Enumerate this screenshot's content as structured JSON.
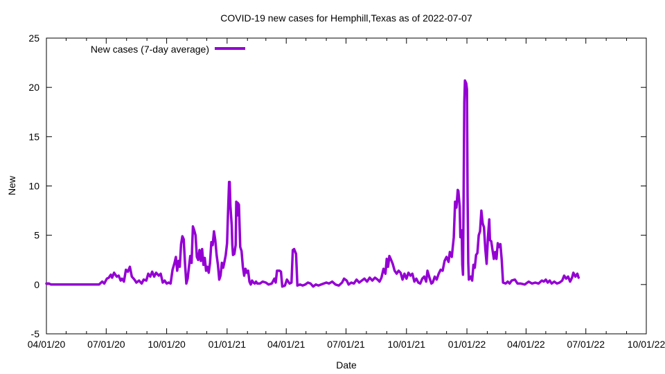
{
  "chart_data": {
    "type": "line",
    "title": "COVID-19 new cases for Hemphill,Texas as of 2022-07-07",
    "xlabel": "Date",
    "ylabel": "New",
    "xlim": [
      "2020-04-01",
      "2022-10-01"
    ],
    "ylim": [
      -5,
      25
    ],
    "grid": false,
    "legend_position": "top-left",
    "x_ticks": [
      "04/01/20",
      "07/01/20",
      "10/01/20",
      "01/01/21",
      "04/01/21",
      "07/01/21",
      "10/01/21",
      "01/01/22",
      "04/01/22",
      "07/01/22",
      "10/01/22"
    ],
    "x_tick_dates": [
      "2020-04-01",
      "2020-07-01",
      "2020-10-01",
      "2021-01-01",
      "2021-04-01",
      "2021-07-01",
      "2021-10-01",
      "2022-01-01",
      "2022-04-01",
      "2022-07-01",
      "2022-10-01"
    ],
    "y_ticks": [
      -5,
      0,
      5,
      10,
      15,
      20,
      25
    ],
    "series": [
      {
        "name": "New cases (7-day average)",
        "color": "#9400d3",
        "points": [
          [
            "2020-04-01",
            0.1
          ],
          [
            "2020-04-05",
            0.1
          ],
          [
            "2020-04-08",
            0
          ],
          [
            "2020-06-20",
            0
          ],
          [
            "2020-06-25",
            0.3
          ],
          [
            "2020-06-28",
            0.1
          ],
          [
            "2020-07-02",
            0.6
          ],
          [
            "2020-07-05",
            0.7
          ],
          [
            "2020-07-08",
            1.0
          ],
          [
            "2020-07-10",
            0.7
          ],
          [
            "2020-07-13",
            1.2
          ],
          [
            "2020-07-17",
            0.8
          ],
          [
            "2020-07-20",
            0.9
          ],
          [
            "2020-07-23",
            0.4
          ],
          [
            "2020-07-25",
            0.6
          ],
          [
            "2020-07-28",
            0.3
          ],
          [
            "2020-07-31",
            1.5
          ],
          [
            "2020-08-03",
            1.3
          ],
          [
            "2020-08-06",
            1.8
          ],
          [
            "2020-08-09",
            0.8
          ],
          [
            "2020-08-13",
            0.5
          ],
          [
            "2020-08-16",
            0.2
          ],
          [
            "2020-08-20",
            0.4
          ],
          [
            "2020-08-24",
            0.1
          ],
          [
            "2020-08-27",
            0.5
          ],
          [
            "2020-08-31",
            0.4
          ],
          [
            "2020-09-03",
            1.1
          ],
          [
            "2020-09-06",
            0.8
          ],
          [
            "2020-09-09",
            1.3
          ],
          [
            "2020-09-12",
            0.8
          ],
          [
            "2020-09-15",
            1.2
          ],
          [
            "2020-09-19",
            0.9
          ],
          [
            "2020-09-22",
            1.1
          ],
          [
            "2020-09-25",
            0.2
          ],
          [
            "2020-09-28",
            0.4
          ],
          [
            "2020-10-01",
            0.1
          ],
          [
            "2020-10-04",
            0.2
          ],
          [
            "2020-10-07",
            0.1
          ],
          [
            "2020-10-10",
            1.5
          ],
          [
            "2020-10-13",
            2.2
          ],
          [
            "2020-10-15",
            2.8
          ],
          [
            "2020-10-17",
            1.4
          ],
          [
            "2020-10-19",
            2.4
          ],
          [
            "2020-10-21",
            1.8
          ],
          [
            "2020-10-23",
            4.1
          ],
          [
            "2020-10-25",
            4.9
          ],
          [
            "2020-10-27",
            4.6
          ],
          [
            "2020-10-29",
            2.1
          ],
          [
            "2020-10-31",
            0.1
          ],
          [
            "2020-11-02",
            0.6
          ],
          [
            "2020-11-04",
            1.8
          ],
          [
            "2020-11-06",
            2.9
          ],
          [
            "2020-11-08",
            2.2
          ],
          [
            "2020-11-10",
            5.9
          ],
          [
            "2020-11-12",
            5.5
          ],
          [
            "2020-11-14",
            5.0
          ],
          [
            "2020-11-16",
            2.8
          ],
          [
            "2020-11-18",
            2.5
          ],
          [
            "2020-11-20",
            3.5
          ],
          [
            "2020-11-22",
            2.4
          ],
          [
            "2020-11-24",
            3.6
          ],
          [
            "2020-11-26",
            2.0
          ],
          [
            "2020-11-28",
            2.7
          ],
          [
            "2020-11-30",
            1.4
          ],
          [
            "2020-12-02",
            1.8
          ],
          [
            "2020-12-04",
            1.2
          ],
          [
            "2020-12-06",
            2.2
          ],
          [
            "2020-12-08",
            4.3
          ],
          [
            "2020-12-10",
            4.0
          ],
          [
            "2020-12-12",
            5.4
          ],
          [
            "2020-12-14",
            4.5
          ],
          [
            "2020-12-16",
            3.0
          ],
          [
            "2020-12-18",
            2.0
          ],
          [
            "2020-12-20",
            0.5
          ],
          [
            "2020-12-22",
            0.9
          ],
          [
            "2020-12-24",
            2.2
          ],
          [
            "2020-12-26",
            1.7
          ],
          [
            "2020-12-28",
            2.3
          ],
          [
            "2020-12-30",
            3.0
          ],
          [
            "2021-01-01",
            4.2
          ],
          [
            "2021-01-02",
            6.5
          ],
          [
            "2021-01-04",
            10.4
          ],
          [
            "2021-01-05",
            10.4
          ],
          [
            "2021-01-06",
            8.0
          ],
          [
            "2021-01-08",
            6.0
          ],
          [
            "2021-01-09",
            4.0
          ],
          [
            "2021-01-10",
            3.0
          ],
          [
            "2021-01-12",
            3.1
          ],
          [
            "2021-01-14",
            4.0
          ],
          [
            "2021-01-15",
            8.4
          ],
          [
            "2021-01-16",
            7.0
          ],
          [
            "2021-01-17",
            8.3
          ],
          [
            "2021-01-19",
            8.1
          ],
          [
            "2021-01-21",
            3.8
          ],
          [
            "2021-01-23",
            3.4
          ],
          [
            "2021-01-25",
            1.8
          ],
          [
            "2021-01-27",
            0.9
          ],
          [
            "2021-01-29",
            1.6
          ],
          [
            "2021-01-31",
            1.2
          ],
          [
            "2021-02-02",
            1.4
          ],
          [
            "2021-02-04",
            0.3
          ],
          [
            "2021-02-06",
            0
          ],
          [
            "2021-02-08",
            0.4
          ],
          [
            "2021-02-10",
            0.2
          ],
          [
            "2021-02-12",
            0.1
          ],
          [
            "2021-02-14",
            0.3
          ],
          [
            "2021-02-16",
            0.1
          ],
          [
            "2021-02-20",
            0.1
          ],
          [
            "2021-02-24",
            0.3
          ],
          [
            "2021-03-01",
            0.2
          ],
          [
            "2021-03-05",
            0
          ],
          [
            "2021-03-10",
            0.1
          ],
          [
            "2021-03-14",
            0.6
          ],
          [
            "2021-03-16",
            0.2
          ],
          [
            "2021-03-18",
            1.4
          ],
          [
            "2021-03-22",
            1.4
          ],
          [
            "2021-03-24",
            1.3
          ],
          [
            "2021-03-26",
            -0.2
          ],
          [
            "2021-03-30",
            -0.1
          ],
          [
            "2021-04-02",
            0.5
          ],
          [
            "2021-04-06",
            0.1
          ],
          [
            "2021-04-09",
            0.2
          ],
          [
            "2021-04-11",
            3.5
          ],
          [
            "2021-04-13",
            3.6
          ],
          [
            "2021-04-16",
            3.1
          ],
          [
            "2021-04-18",
            -0.1
          ],
          [
            "2021-04-22",
            0
          ],
          [
            "2021-04-26",
            -0.1
          ],
          [
            "2021-04-30",
            0
          ],
          [
            "2021-05-04",
            0.2
          ],
          [
            "2021-05-08",
            0.1
          ],
          [
            "2021-05-12",
            -0.2
          ],
          [
            "2021-05-16",
            0
          ],
          [
            "2021-05-20",
            -0.1
          ],
          [
            "2021-05-24",
            0
          ],
          [
            "2021-06-01",
            0.2
          ],
          [
            "2021-06-05",
            0.1
          ],
          [
            "2021-06-10",
            0.3
          ],
          [
            "2021-06-15",
            0
          ],
          [
            "2021-06-20",
            -0.1
          ],
          [
            "2021-06-25",
            0.2
          ],
          [
            "2021-06-28",
            0.6
          ],
          [
            "2021-07-02",
            0.4
          ],
          [
            "2021-07-05",
            0
          ],
          [
            "2021-07-09",
            0.2
          ],
          [
            "2021-07-13",
            0.1
          ],
          [
            "2021-07-17",
            0.5
          ],
          [
            "2021-07-21",
            0.2
          ],
          [
            "2021-07-25",
            0.4
          ],
          [
            "2021-07-29",
            0.6
          ],
          [
            "2021-08-02",
            0.3
          ],
          [
            "2021-08-06",
            0.7
          ],
          [
            "2021-08-10",
            0.4
          ],
          [
            "2021-08-14",
            0.7
          ],
          [
            "2021-08-18",
            0.5
          ],
          [
            "2021-08-21",
            0.3
          ],
          [
            "2021-08-24",
            0.7
          ],
          [
            "2021-08-27",
            1.6
          ],
          [
            "2021-08-30",
            1.1
          ],
          [
            "2021-09-01",
            2.6
          ],
          [
            "2021-09-03",
            1.8
          ],
          [
            "2021-09-05",
            2.9
          ],
          [
            "2021-09-07",
            2.6
          ],
          [
            "2021-09-10",
            2.1
          ],
          [
            "2021-09-13",
            1.4
          ],
          [
            "2021-09-16",
            1.1
          ],
          [
            "2021-09-19",
            1.4
          ],
          [
            "2021-09-22",
            1.2
          ],
          [
            "2021-09-25",
            0.5
          ],
          [
            "2021-09-28",
            1.1
          ],
          [
            "2021-10-01",
            0.6
          ],
          [
            "2021-10-04",
            1.2
          ],
          [
            "2021-10-07",
            0.9
          ],
          [
            "2021-10-10",
            1.1
          ],
          [
            "2021-10-13",
            0.3
          ],
          [
            "2021-10-16",
            0.6
          ],
          [
            "2021-10-19",
            0.2
          ],
          [
            "2021-10-22",
            0.1
          ],
          [
            "2021-10-25",
            0.6
          ],
          [
            "2021-10-28",
            0.8
          ],
          [
            "2021-10-31",
            0.3
          ],
          [
            "2021-11-02",
            1.4
          ],
          [
            "2021-11-05",
            0.7
          ],
          [
            "2021-11-08",
            0.1
          ],
          [
            "2021-11-10",
            0.2
          ],
          [
            "2021-11-13",
            0.8
          ],
          [
            "2021-11-16",
            0.5
          ],
          [
            "2021-11-19",
            1.1
          ],
          [
            "2021-11-22",
            1.5
          ],
          [
            "2021-11-25",
            1.4
          ],
          [
            "2021-11-28",
            2.4
          ],
          [
            "2021-12-01",
            2.8
          ],
          [
            "2021-12-04",
            2.3
          ],
          [
            "2021-12-06",
            3.3
          ],
          [
            "2021-12-09",
            2.8
          ],
          [
            "2021-12-12",
            4.8
          ],
          [
            "2021-12-14",
            8.4
          ],
          [
            "2021-12-16",
            7.8
          ],
          [
            "2021-12-18",
            9.6
          ],
          [
            "2021-12-19",
            9.5
          ],
          [
            "2021-12-21",
            7.9
          ],
          [
            "2021-12-22",
            4.8
          ],
          [
            "2021-12-24",
            5.5
          ],
          [
            "2021-12-25",
            2.0
          ],
          [
            "2021-12-26",
            1.0
          ],
          [
            "2021-12-28",
            18.5
          ],
          [
            "2021-12-29",
            20.7
          ],
          [
            "2021-12-31",
            20.4
          ],
          [
            "2022-01-01",
            19.8
          ],
          [
            "2022-01-02",
            9.0
          ],
          [
            "2022-01-03",
            2.2
          ],
          [
            "2022-01-04",
            0.5
          ],
          [
            "2022-01-07",
            0.8
          ],
          [
            "2022-01-09",
            0.4
          ],
          [
            "2022-01-11",
            2.0
          ],
          [
            "2022-01-13",
            1.7
          ],
          [
            "2022-01-15",
            3.0
          ],
          [
            "2022-01-17",
            3.2
          ],
          [
            "2022-01-19",
            5.0
          ],
          [
            "2022-01-21",
            5.4
          ],
          [
            "2022-01-23",
            7.5
          ],
          [
            "2022-01-25",
            6.2
          ],
          [
            "2022-01-27",
            5.8
          ],
          [
            "2022-01-29",
            3.6
          ],
          [
            "2022-01-31",
            2.1
          ],
          [
            "2022-02-02",
            4.8
          ],
          [
            "2022-02-04",
            6.6
          ],
          [
            "2022-02-05",
            4.5
          ],
          [
            "2022-02-07",
            4.4
          ],
          [
            "2022-02-09",
            3.5
          ],
          [
            "2022-02-11",
            2.6
          ],
          [
            "2022-02-13",
            3.3
          ],
          [
            "2022-02-15",
            2.6
          ],
          [
            "2022-02-17",
            4.2
          ],
          [
            "2022-02-19",
            3.8
          ],
          [
            "2022-02-21",
            4.1
          ],
          [
            "2022-02-23",
            2.5
          ],
          [
            "2022-02-25",
            0.2
          ],
          [
            "2022-03-01",
            0.1
          ],
          [
            "2022-03-04",
            0.3
          ],
          [
            "2022-03-07",
            0.1
          ],
          [
            "2022-03-10",
            0.4
          ],
          [
            "2022-03-15",
            0.5
          ],
          [
            "2022-03-19",
            0.1
          ],
          [
            "2022-03-24",
            0.1
          ],
          [
            "2022-03-30",
            0
          ],
          [
            "2022-04-05",
            0.3
          ],
          [
            "2022-04-10",
            0.1
          ],
          [
            "2022-04-15",
            0.2
          ],
          [
            "2022-04-20",
            0.1
          ],
          [
            "2022-04-25",
            0.4
          ],
          [
            "2022-04-28",
            0.3
          ],
          [
            "2022-05-01",
            0.5
          ],
          [
            "2022-05-04",
            0.2
          ],
          [
            "2022-05-07",
            0.4
          ],
          [
            "2022-05-10",
            0.1
          ],
          [
            "2022-05-14",
            0.3
          ],
          [
            "2022-05-18",
            0.1
          ],
          [
            "2022-05-22",
            0.2
          ],
          [
            "2022-05-26",
            0.4
          ],
          [
            "2022-05-29",
            0.9
          ],
          [
            "2022-06-01",
            0.6
          ],
          [
            "2022-06-04",
            0.8
          ],
          [
            "2022-06-07",
            0.3
          ],
          [
            "2022-06-10",
            0.7
          ],
          [
            "2022-06-12",
            1.2
          ],
          [
            "2022-06-15",
            0.8
          ],
          [
            "2022-06-18",
            1.1
          ],
          [
            "2022-06-20",
            0.7
          ]
        ]
      }
    ]
  }
}
